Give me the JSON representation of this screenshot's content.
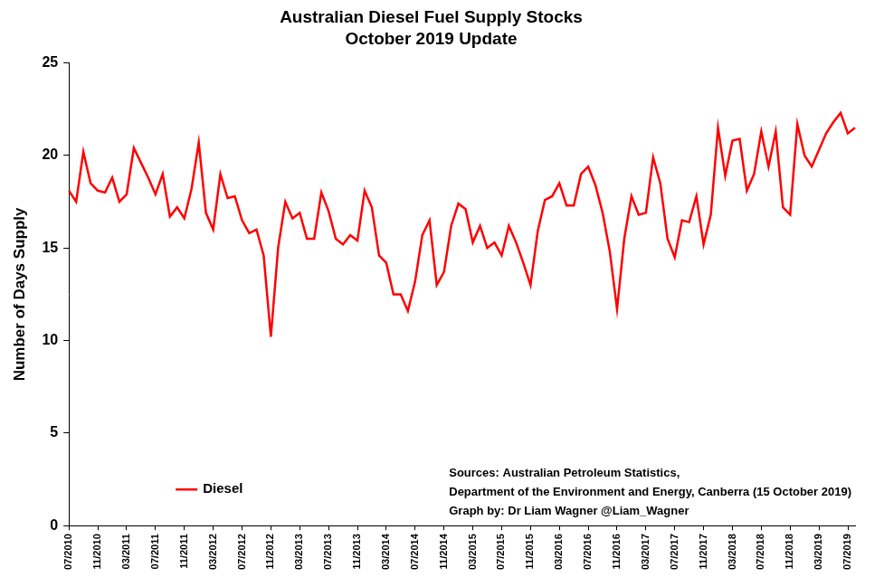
{
  "chart_data": {
    "type": "line",
    "title": "Australian Diesel Fuel Supply Stocks",
    "subtitle": "October 2019 Update",
    "y_label": "Number of Days Supply",
    "categories": [
      "07/2010",
      null,
      null,
      null,
      "11/2010",
      null,
      null,
      null,
      "03/2011",
      null,
      null,
      null,
      "07/2011",
      null,
      null,
      null,
      "11/2011",
      null,
      null,
      null,
      "03/2012",
      null,
      null,
      null,
      "07/2012",
      null,
      null,
      null,
      "11/2012",
      null,
      null,
      null,
      "03/2013",
      null,
      null,
      null,
      "07/2013",
      null,
      null,
      null,
      "11/2013",
      null,
      null,
      null,
      "03/2014",
      null,
      null,
      null,
      "07/2014",
      null,
      null,
      null,
      "11/2014",
      null,
      null,
      null,
      "03/2015",
      null,
      null,
      null,
      "07/2015",
      null,
      null,
      null,
      "11/2015",
      null,
      null,
      null,
      "03/2016",
      null,
      null,
      null,
      "07/2016",
      null,
      null,
      null,
      "11/2016",
      null,
      null,
      null,
      "03/2017",
      null,
      null,
      null,
      "07/2017",
      null,
      null,
      null,
      "11/2017",
      null,
      null,
      null,
      "03/2018",
      null,
      null,
      null,
      "07/2018",
      null,
      null,
      null,
      "11/2018",
      null,
      null,
      null,
      "03/2019",
      null,
      null,
      null,
      "07/2019",
      null
    ],
    "series": [
      {
        "name": "Diesel",
        "color": "#ff0000",
        "marker": "none",
        "line_style": "solid",
        "values": [
          18.1,
          17.5,
          20.2,
          18.5,
          18.1,
          18.0,
          18.8,
          17.5,
          17.9,
          20.4,
          19.6,
          18.8,
          17.9,
          19.0,
          16.7,
          17.2,
          16.6,
          18.2,
          20.7,
          16.9,
          16.0,
          19.0,
          17.7,
          17.8,
          16.5,
          15.8,
          16.0,
          14.6,
          10.2,
          15.0,
          17.5,
          16.6,
          16.9,
          15.5,
          15.5,
          18.0,
          17.0,
          15.5,
          15.2,
          15.7,
          15.4,
          18.1,
          17.2,
          14.6,
          14.2,
          12.5,
          12.5,
          11.6,
          13.2,
          15.7,
          16.5,
          13.0,
          13.7,
          16.2,
          17.4,
          17.1,
          15.3,
          16.2,
          15.0,
          15.3,
          14.6,
          16.2,
          15.3,
          14.2,
          13.0,
          15.9,
          17.6,
          17.8,
          18.5,
          17.3,
          17.3,
          19.0,
          19.4,
          18.4,
          16.9,
          14.8,
          11.7,
          15.5,
          17.8,
          16.8,
          16.9,
          19.9,
          18.5,
          15.5,
          14.5,
          16.5,
          16.4,
          17.8,
          15.2,
          16.8,
          21.5,
          18.9,
          20.8,
          20.9,
          18.1,
          19.0,
          21.3,
          19.4,
          21.3,
          17.2,
          16.8,
          21.7,
          20.0,
          19.4,
          20.3,
          21.2,
          21.8,
          22.3,
          21.2,
          21.5
        ]
      }
    ],
    "ylim": [
      0,
      25
    ],
    "yticks": [
      0,
      5,
      10,
      15,
      20,
      25
    ],
    "grid": false,
    "legend": "lower left",
    "annotations": [
      "Sources: Australian Petroleum Statistics,",
      "Department of the Environment and Energy, Canberra (15 October 2019)",
      "Graph by: Dr Liam Wagner @Liam_Wagner"
    ]
  }
}
